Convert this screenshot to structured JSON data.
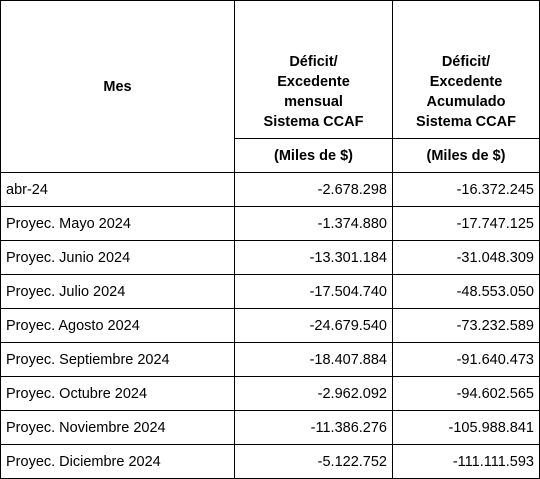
{
  "table": {
    "header": {
      "month": "Mes",
      "columns": [
        {
          "lines": [
            "Déficit/",
            "Excedente",
            "mensual",
            "Sistema CCAF"
          ],
          "unit": "(Miles de $)"
        },
        {
          "lines": [
            "Déficit/",
            "Excedente",
            "Acumulado",
            "Sistema CCAF"
          ],
          "unit": "(Miles de $)"
        }
      ]
    },
    "rows": [
      [
        "abr-24",
        "-2.678.298",
        "-16.372.245"
      ],
      [
        "Proyec. Mayo 2024",
        "-1.374.880",
        "-17.747.125"
      ],
      [
        "Proyec. Junio 2024",
        "-13.301.184",
        "-31.048.309"
      ],
      [
        "Proyec. Julio 2024",
        "-17.504.740",
        "-48.553.050"
      ],
      [
        "Proyec. Agosto 2024",
        "-24.679.540",
        "-73.232.589"
      ],
      [
        "Proyec. Septiembre 2024",
        "-18.407.884",
        "-91.640.473"
      ],
      [
        "Proyec. Octubre 2024",
        "-2.962.092",
        "-94.602.565"
      ],
      [
        "Proyec. Noviembre 2024",
        "-11.386.276",
        "-105.988.841"
      ],
      [
        "Proyec. Diciembre 2024",
        "-5.122.752",
        "-111.111.593"
      ]
    ]
  }
}
